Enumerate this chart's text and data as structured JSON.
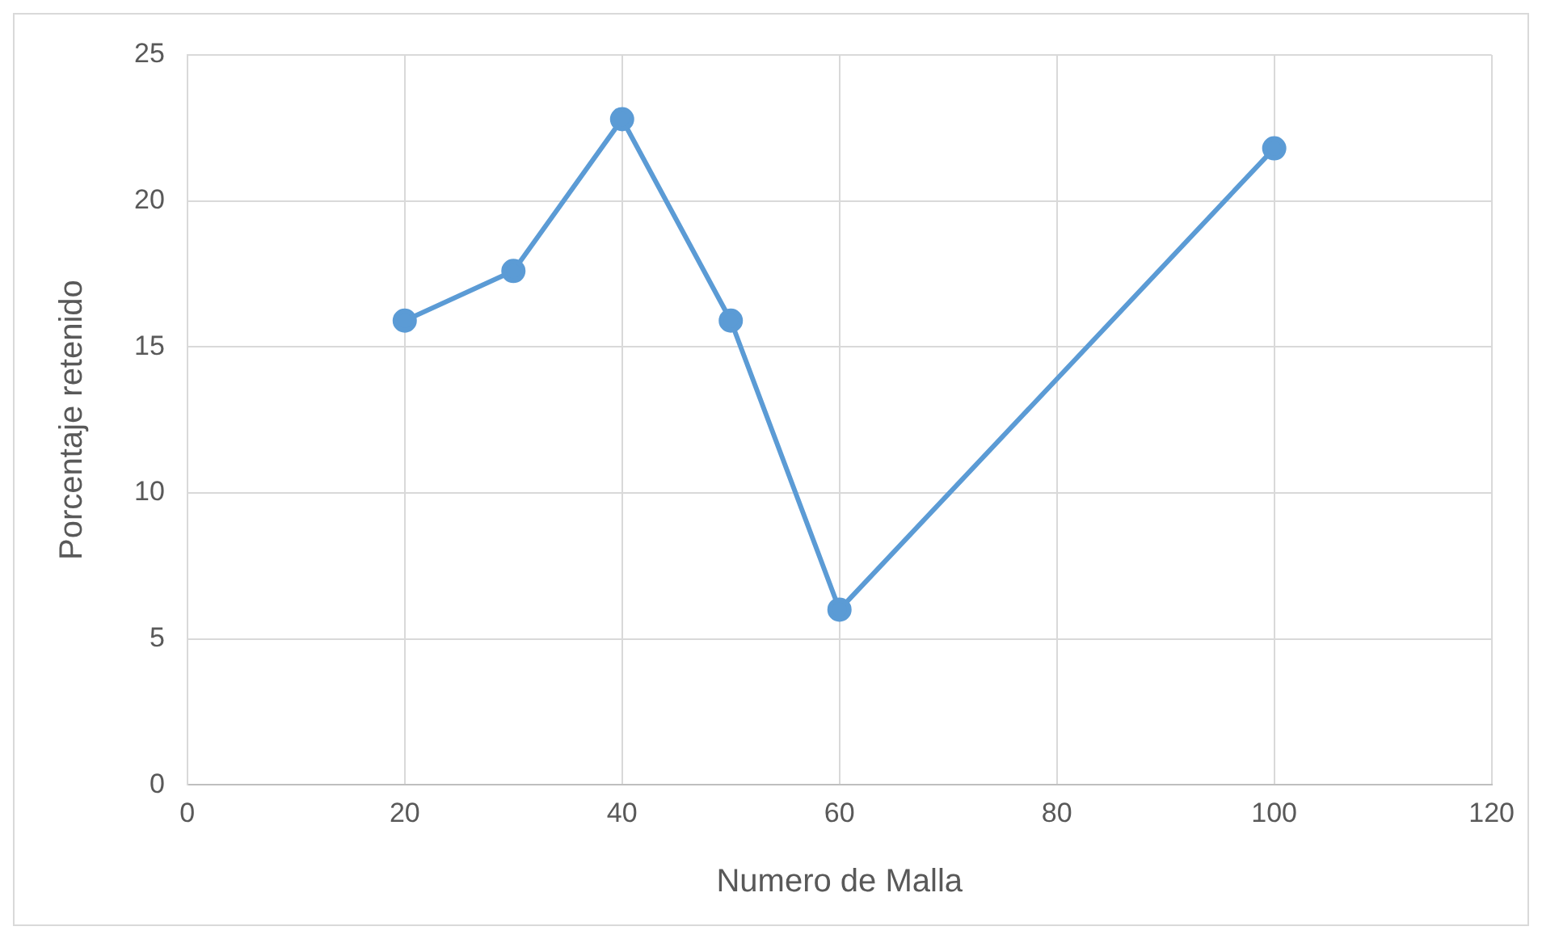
{
  "chart_data": {
    "type": "line",
    "xlabel": "Numero de Malla",
    "ylabel": "Porcentaje retenido",
    "x": [
      20,
      30,
      40,
      50,
      60,
      100
    ],
    "series": [
      {
        "color": "#5b9bd5",
        "values": [
          15.9,
          17.6,
          22.8,
          15.9,
          6.0,
          21.8
        ]
      }
    ],
    "xlim": [
      0,
      120
    ],
    "xticks": [
      0,
      20,
      40,
      60,
      80,
      100,
      120
    ],
    "ylim": [
      0,
      25
    ],
    "yticks": [
      0,
      5,
      10,
      15,
      20,
      25
    ],
    "grid": true,
    "legend": false,
    "marker": "circle",
    "line_style": "solid"
  }
}
